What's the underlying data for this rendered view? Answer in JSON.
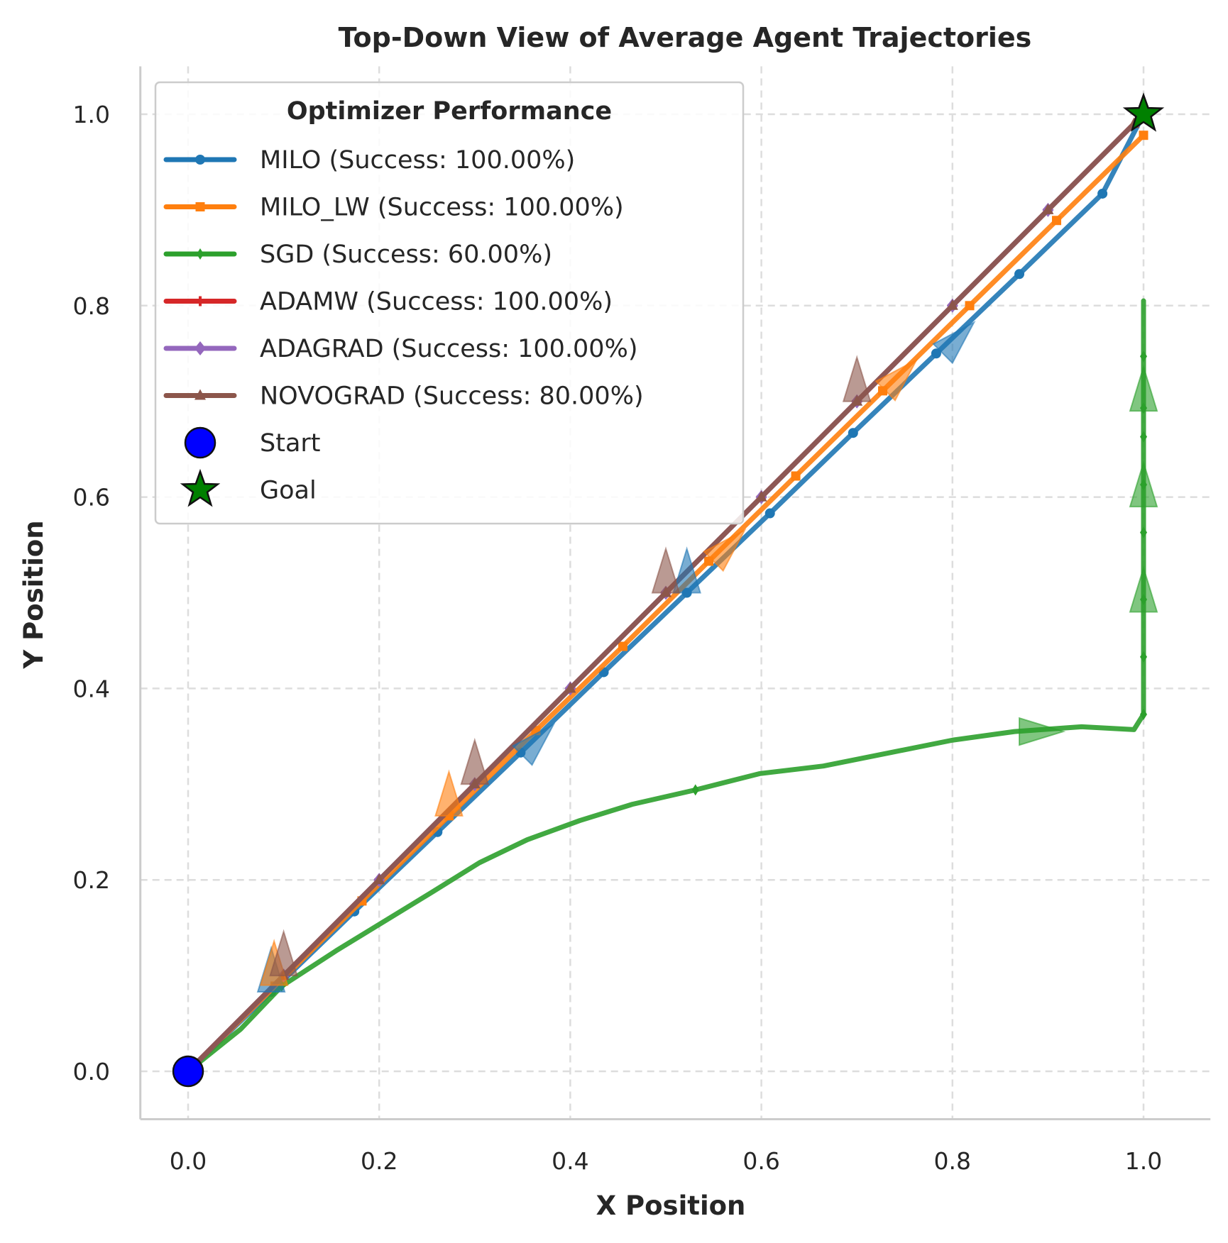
{
  "chart_data": {
    "type": "line",
    "title": "Top-Down View of Average Agent Trajectories",
    "xlabel": "X Position",
    "ylabel": "Y Position",
    "xlim": [
      -0.05,
      1.07
    ],
    "ylim": [
      -0.05,
      1.05
    ],
    "xticks": [
      "0.0",
      "0.2",
      "0.4",
      "0.6",
      "0.8",
      "1.0"
    ],
    "yticks": [
      "0.0",
      "0.2",
      "0.4",
      "0.6",
      "0.8",
      "1.0"
    ],
    "grid": true,
    "legend": {
      "title": "Optimizer Performance",
      "placement": "upper-left"
    },
    "series": [
      {
        "name": "MILO (Success: 100.00%)",
        "color": "#1f77b4",
        "marker": "circle",
        "x": [
          0,
          0.087,
          0.174,
          0.261,
          0.348,
          0.435,
          0.522,
          0.609,
          0.696,
          0.783,
          0.87,
          0.957,
          1.0
        ],
        "y": [
          0,
          0.083,
          0.167,
          0.25,
          0.333,
          0.417,
          0.5,
          0.583,
          0.667,
          0.75,
          0.833,
          0.917,
          1.0
        ]
      },
      {
        "name": "MILO_LW (Success: 100.00%)",
        "color": "#ff7f0e",
        "marker": "square",
        "x": [
          0,
          0.091,
          0.182,
          0.273,
          0.364,
          0.455,
          0.545,
          0.636,
          0.727,
          0.818,
          0.909,
          1.0
        ],
        "y": [
          0,
          0.089,
          0.178,
          0.267,
          0.356,
          0.444,
          0.533,
          0.622,
          0.711,
          0.8,
          0.889,
          0.978
        ]
      },
      {
        "name": "SGD (Success: 60.00%)",
        "color": "#2ca02c",
        "marker": "diamond-thin",
        "x": [
          0,
          0.055,
          0.098,
          0.155,
          0.255,
          0.305,
          0.355,
          0.41,
          0.465,
          0.531,
          0.598,
          0.665,
          0.735,
          0.8,
          0.865,
          0.935,
          0.99,
          1.0,
          1.0,
          1.0,
          1.0,
          1.0,
          1.0,
          1.0,
          1.0,
          1.0,
          1.0
        ],
        "y": [
          0,
          0.044,
          0.089,
          0.126,
          0.187,
          0.218,
          0.242,
          0.262,
          0.279,
          0.294,
          0.311,
          0.319,
          0.333,
          0.346,
          0.355,
          0.36,
          0.357,
          0.373,
          0.433,
          0.493,
          0.563,
          0.613,
          0.663,
          0.693,
          0.747,
          0.79,
          0.805
        ]
      },
      {
        "name": "ADAMW (Success: 100.00%)",
        "color": "#d62728",
        "marker": "plus",
        "x": [
          0,
          0.1,
          0.2,
          0.3,
          0.4,
          0.5,
          0.6,
          0.7,
          0.8,
          0.9,
          1.0
        ],
        "y": [
          0,
          0.1,
          0.2,
          0.3,
          0.4,
          0.5,
          0.6,
          0.7,
          0.8,
          0.9,
          1.0
        ]
      },
      {
        "name": "ADAGRAD (Success: 100.00%)",
        "color": "#9467bd",
        "marker": "diamond",
        "x": [
          0,
          0.1,
          0.2,
          0.3,
          0.4,
          0.5,
          0.6,
          0.7,
          0.8,
          0.9,
          1.0
        ],
        "y": [
          0,
          0.1,
          0.2,
          0.3,
          0.4,
          0.5,
          0.6,
          0.7,
          0.8,
          0.9,
          1.0
        ]
      },
      {
        "name": "NOVOGRAD (Success: 80.00%)",
        "color": "#8c564b",
        "marker": "triangle",
        "x": [
          0,
          0.1,
          0.2,
          0.3,
          0.4,
          0.5,
          0.6,
          0.7,
          0.8,
          0.9,
          0.99
        ],
        "y": [
          0,
          0.1,
          0.2,
          0.3,
          0.4,
          0.5,
          0.6,
          0.7,
          0.8,
          0.9,
          0.99
        ]
      }
    ],
    "direction_arrows": [
      {
        "color": "#1f77b4",
        "x": 0.087,
        "y": 0.083,
        "dx": 0,
        "dy": 1
      },
      {
        "color": "#1f77b4",
        "x": 0.522,
        "y": 0.5,
        "dx": 0,
        "dy": 1
      },
      {
        "color": "#1f77b4",
        "x": 0.35,
        "y": 0.33,
        "dx": 0.7,
        "dy": 0.7
      },
      {
        "color": "#1f77b4",
        "x": 0.79,
        "y": 0.75,
        "dx": 0.7,
        "dy": 0.7
      },
      {
        "color": "#ff7f0e",
        "x": 0.09,
        "y": 0.09,
        "dx": 0,
        "dy": 1
      },
      {
        "color": "#ff7f0e",
        "x": 0.273,
        "y": 0.267,
        "dx": 0,
        "dy": 1
      },
      {
        "color": "#ff7f0e",
        "x": 0.55,
        "y": 0.533,
        "dx": 0.7,
        "dy": 0.7
      },
      {
        "color": "#ff7f0e",
        "x": 0.73,
        "y": 0.711,
        "dx": 0.7,
        "dy": 0.7
      },
      {
        "color": "#2ca02c",
        "x": 0.87,
        "y": 0.355,
        "dx": 1,
        "dy": 0
      },
      {
        "color": "#2ca02c",
        "x": 1.0,
        "y": 0.48,
        "dx": 0,
        "dy": 1
      },
      {
        "color": "#2ca02c",
        "x": 1.0,
        "y": 0.59,
        "dx": 0,
        "dy": 1
      },
      {
        "color": "#2ca02c",
        "x": 1.0,
        "y": 0.69,
        "dx": 0,
        "dy": 1
      },
      {
        "color": "#8c564b",
        "x": 0.1,
        "y": 0.1,
        "dx": 0,
        "dy": 1
      },
      {
        "color": "#8c564b",
        "x": 0.3,
        "y": 0.3,
        "dx": 0,
        "dy": 1
      },
      {
        "color": "#8c564b",
        "x": 0.5,
        "y": 0.5,
        "dx": 0,
        "dy": 1
      },
      {
        "color": "#8c564b",
        "x": 0.7,
        "y": 0.7,
        "dx": 0,
        "dy": 1
      }
    ],
    "start": {
      "label": "Start",
      "x": 0,
      "y": 0,
      "color": "#0000ff"
    },
    "goal": {
      "label": "Goal",
      "x": 1.0,
      "y": 1.0,
      "color": "#008000"
    }
  }
}
